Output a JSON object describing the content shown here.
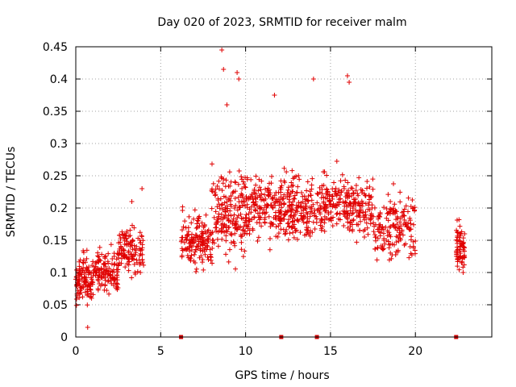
{
  "chart_data": {
    "type": "scatter",
    "title": "Day 020 of 2023, SRMTID for receiver malm",
    "xlabel": "GPS time / hours",
    "ylabel": "SRMTID / TECUs",
    "xlim": [
      0,
      24.5
    ],
    "ylim": [
      0,
      0.45
    ],
    "xticks": [
      0,
      5,
      10,
      15,
      20
    ],
    "xtick_labels": [
      "0",
      "5",
      "10",
      "15",
      "20"
    ],
    "yticks": [
      0,
      0.05,
      0.1,
      0.15,
      0.2,
      0.25,
      0.3,
      0.35,
      0.4,
      0.45
    ],
    "ytick_labels": [
      "0",
      "0.05",
      "0.1",
      "0.15",
      "0.2",
      "0.25",
      "0.3",
      "0.35",
      "0.4",
      "0.45"
    ],
    "grid": true,
    "marker": "plus",
    "color": "#e00000",
    "gap_marker_color": "#d00000",
    "gap_markers_x": [
      6.2,
      12.1,
      14.2,
      22.4
    ],
    "clusters": [
      {
        "x_range": [
          0.0,
          1.0
        ],
        "y_mean": 0.09,
        "y_spread": 0.05,
        "count": 110
      },
      {
        "x_range": [
          1.0,
          2.5
        ],
        "y_mean": 0.1,
        "y_spread": 0.05,
        "count": 130
      },
      {
        "x_range": [
          2.5,
          4.0
        ],
        "y_mean": 0.135,
        "y_spread": 0.05,
        "count": 120
      },
      {
        "x_range": [
          6.2,
          8.0
        ],
        "y_mean": 0.15,
        "y_spread": 0.06,
        "count": 150
      },
      {
        "x_range": [
          8.0,
          10.0
        ],
        "y_mean": 0.19,
        "y_spread": 0.09,
        "count": 190
      },
      {
        "x_range": [
          10.0,
          12.5
        ],
        "y_mean": 0.2,
        "y_spread": 0.07,
        "count": 210
      },
      {
        "x_range": [
          12.5,
          15.0
        ],
        "y_mean": 0.2,
        "y_spread": 0.07,
        "count": 210
      },
      {
        "x_range": [
          15.0,
          17.5
        ],
        "y_mean": 0.205,
        "y_spread": 0.07,
        "count": 190
      },
      {
        "x_range": [
          17.5,
          20.0
        ],
        "y_mean": 0.17,
        "y_spread": 0.07,
        "count": 170
      },
      {
        "x_range": [
          22.4,
          22.9
        ],
        "y_mean": 0.14,
        "y_spread": 0.06,
        "count": 70
      }
    ],
    "highlights": [
      {
        "x": 8.6,
        "y": 0.445
      },
      {
        "x": 8.7,
        "y": 0.415
      },
      {
        "x": 9.5,
        "y": 0.41
      },
      {
        "x": 9.6,
        "y": 0.4
      },
      {
        "x": 14.0,
        "y": 0.4
      },
      {
        "x": 16.0,
        "y": 0.405
      },
      {
        "x": 16.1,
        "y": 0.395
      },
      {
        "x": 11.7,
        "y": 0.375
      },
      {
        "x": 8.9,
        "y": 0.36
      },
      {
        "x": 0.7,
        "y": 0.015
      },
      {
        "x": 3.3,
        "y": 0.21
      },
      {
        "x": 3.9,
        "y": 0.23
      }
    ]
  }
}
